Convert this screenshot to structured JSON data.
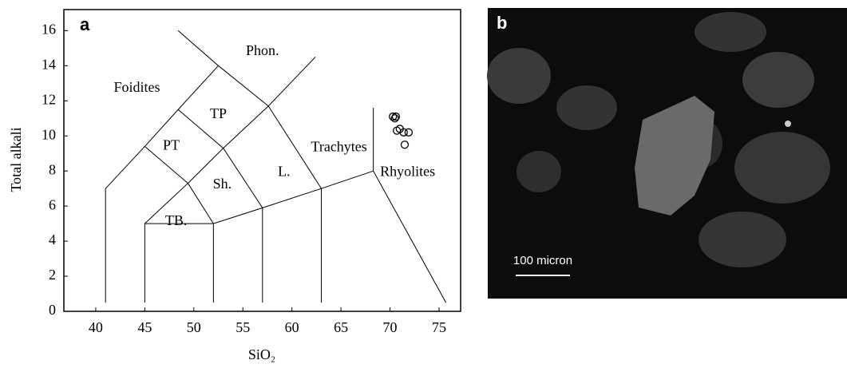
{
  "chart_data": {
    "type": "scatter",
    "panel_label": "a",
    "x_label": "SiO₂",
    "y_label": "Total alkali",
    "x": [
      70.3,
      70.5,
      70.6,
      70.7,
      71.0,
      71.4,
      71.9,
      71.5
    ],
    "values": [
      11.1,
      11.0,
      11.1,
      10.3,
      10.4,
      10.2,
      10.2,
      9.5
    ],
    "color": "#000000",
    "xlim": [
      36.75,
      77.2
    ],
    "ylim": [
      0,
      17.2
    ],
    "xticks": [
      40,
      45,
      50,
      55,
      60,
      65,
      70,
      75
    ],
    "yticks": [
      0,
      2,
      4,
      6,
      8,
      10,
      12,
      14,
      16
    ],
    "annotations": [
      "Foidites",
      "Phon.",
      "TP",
      "PT",
      "Sh.",
      "TB.",
      "L.",
      "Trachytes",
      "Rhyolites"
    ]
  },
  "image_panel": {
    "panel_label": "b",
    "scale_bar": "100 micron"
  }
}
